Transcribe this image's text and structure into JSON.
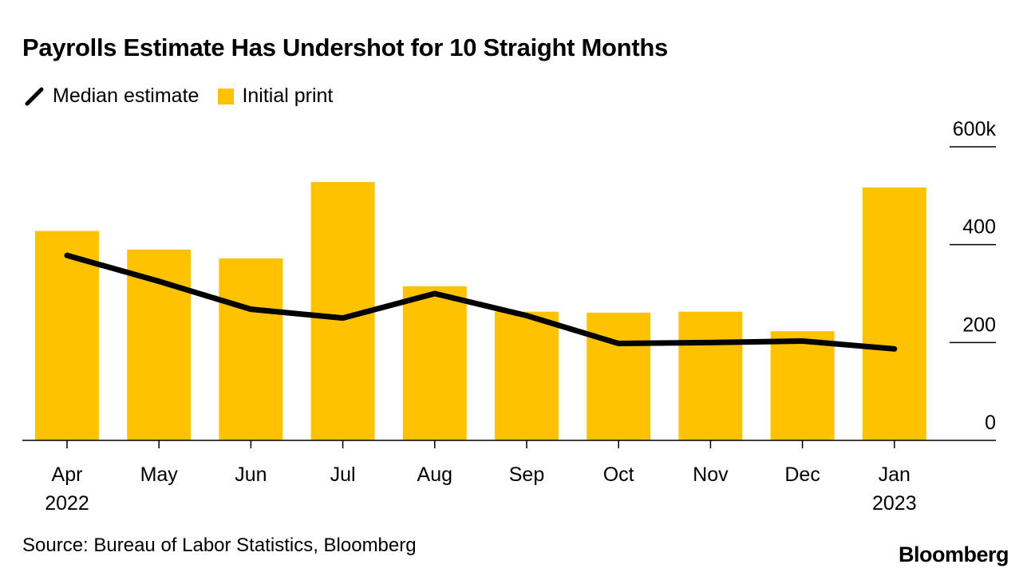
{
  "chart_data": {
    "type": "bar",
    "title": "Payrolls Estimate Has Undershot for 10 Straight Months",
    "xlabel": "",
    "ylabel": "",
    "categories": [
      "Apr",
      "May",
      "Jun",
      "Jul",
      "Aug",
      "Sep",
      "Oct",
      "Nov",
      "Dec",
      "Jan"
    ],
    "category_sublabels": [
      "2022",
      "",
      "",
      "",
      "",
      "",
      "",
      "",
      "",
      "2023"
    ],
    "series": [
      {
        "name": "Initial print",
        "type": "bar",
        "color": "#FFC200",
        "values": [
          428,
          390,
          372,
          528,
          315,
          263,
          261,
          263,
          223,
          517
        ]
      },
      {
        "name": "Median estimate",
        "type": "line",
        "color": "#000000",
        "values": [
          378,
          325,
          268,
          250,
          300,
          255,
          198,
          200,
          203,
          187
        ]
      }
    ],
    "ylim": [
      0,
      600
    ],
    "yticks": [
      0,
      200,
      400,
      600
    ],
    "ytick_labels": [
      "0",
      "200",
      "400",
      "600k"
    ],
    "yaxis_side": "right",
    "grid": false,
    "legend_position": "top-left"
  },
  "legend": {
    "line_label": "Median estimate",
    "bar_label": "Initial print"
  },
  "source": "Source: Bureau of Labor Statistics, Bloomberg",
  "logo": "Bloomberg"
}
